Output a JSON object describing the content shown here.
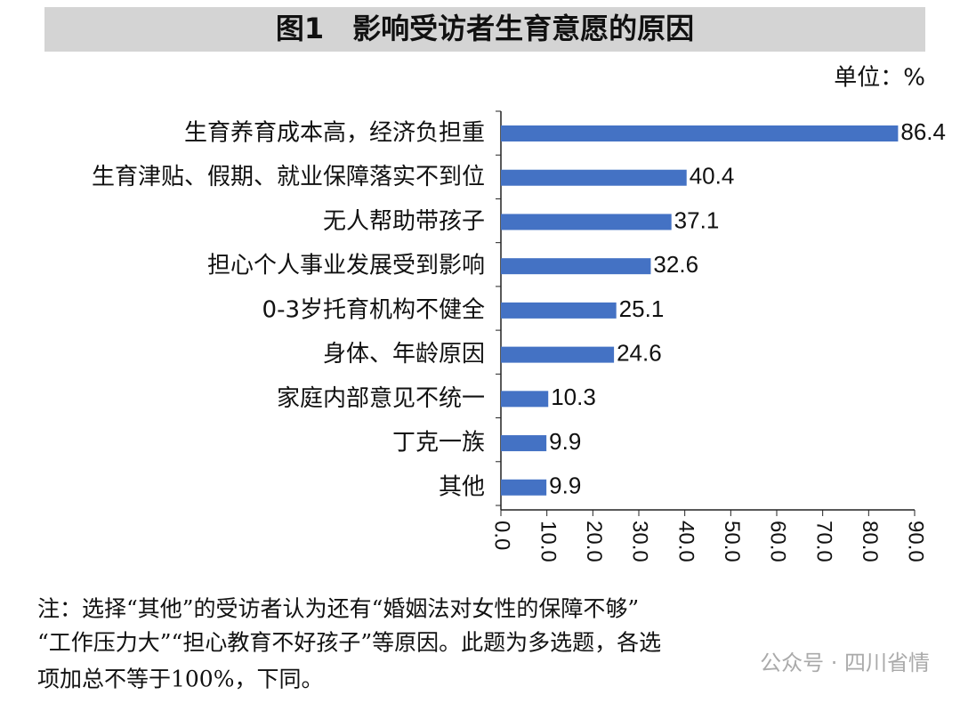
{
  "chart_data": {
    "type": "hbar",
    "title": "图1　影响受访者生育意愿的原因",
    "unit": "单位：%",
    "categories": [
      "生育养育成本高，经济负担重",
      "生育津贴、假期、就业保障落实不到位",
      "无人帮助带孩子",
      "担心个人事业发展受到影响",
      "0-3岁托育机构不健全",
      "身体、年龄原因",
      "家庭内部意见不统一",
      "丁克一族",
      "其他"
    ],
    "values": [
      86.4,
      40.4,
      37.1,
      32.6,
      25.1,
      24.6,
      10.3,
      9.9,
      9.9
    ],
    "color": "#4472c4",
    "xlim": [
      0,
      90
    ],
    "xticks": [
      {
        "value": 0,
        "label": "0.0"
      },
      {
        "value": 10,
        "label": "10.0"
      },
      {
        "value": 20,
        "label": "20.0"
      },
      {
        "value": 30,
        "label": "30.0"
      },
      {
        "value": 40,
        "label": "40.0"
      },
      {
        "value": 50,
        "label": "50.0"
      },
      {
        "value": 60,
        "label": "60.0"
      },
      {
        "value": 70,
        "label": "70.0"
      },
      {
        "value": 80,
        "label": "80.0"
      },
      {
        "value": 90,
        "label": "90.0"
      }
    ],
    "note": [
      "注：选择“其他”的受访者认为还有“婚姻法对女性的保障不够”",
      "“工作压力大”“担心教育不好孩子”等原因。此题为多选题，各选",
      "项加总不等于100%，下同。"
    ],
    "watermark": "公众号 · 四川省情"
  }
}
